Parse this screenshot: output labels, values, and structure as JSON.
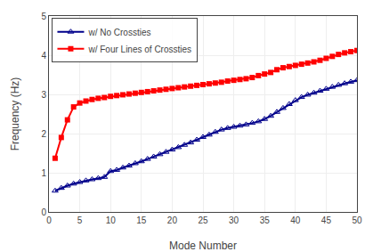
{
  "chart_data": {
    "type": "line",
    "xlabel": "Mode Number",
    "ylabel": "Frequency (Hz)",
    "x": [
      1,
      2,
      3,
      4,
      5,
      6,
      7,
      8,
      9,
      10,
      11,
      12,
      13,
      14,
      15,
      16,
      17,
      18,
      19,
      20,
      21,
      22,
      23,
      24,
      25,
      26,
      27,
      28,
      29,
      30,
      31,
      32,
      33,
      34,
      35,
      36,
      37,
      38,
      39,
      40,
      41,
      42,
      43,
      44,
      45,
      46,
      47,
      48,
      49,
      50
    ],
    "series": [
      {
        "name": "w/ No Crossties",
        "color": "#00008B",
        "marker": "triangle-open",
        "values": [
          0.54,
          0.61,
          0.67,
          0.72,
          0.76,
          0.8,
          0.83,
          0.86,
          0.89,
          1.04,
          1.07,
          1.13,
          1.18,
          1.24,
          1.29,
          1.35,
          1.41,
          1.47,
          1.53,
          1.59,
          1.65,
          1.71,
          1.77,
          1.84,
          1.91,
          1.97,
          2.04,
          2.1,
          2.14,
          2.17,
          2.2,
          2.23,
          2.27,
          2.31,
          2.37,
          2.45,
          2.55,
          2.65,
          2.75,
          2.85,
          2.93,
          2.99,
          3.04,
          3.09,
          3.14,
          3.19,
          3.24,
          3.28,
          3.32,
          3.36
        ]
      },
      {
        "name": "w/ Four Lines of Crossties",
        "color": "#FF0000",
        "marker": "square",
        "values": [
          1.37,
          1.9,
          2.35,
          2.68,
          2.78,
          2.83,
          2.87,
          2.9,
          2.92,
          2.95,
          2.97,
          2.99,
          3.01,
          3.03,
          3.05,
          3.07,
          3.09,
          3.11,
          3.13,
          3.15,
          3.17,
          3.19,
          3.21,
          3.23,
          3.25,
          3.27,
          3.29,
          3.31,
          3.34,
          3.36,
          3.38,
          3.4,
          3.43,
          3.48,
          3.52,
          3.56,
          3.63,
          3.68,
          3.71,
          3.74,
          3.77,
          3.8,
          3.83,
          3.87,
          3.92,
          3.97,
          4.02,
          4.06,
          4.09,
          4.12
        ]
      }
    ],
    "xlim": [
      0,
      50
    ],
    "ylim": [
      0,
      5
    ],
    "xticks": [
      0,
      5,
      10,
      15,
      20,
      25,
      30,
      35,
      40,
      45,
      50
    ],
    "yticks": [
      0,
      1,
      2,
      3,
      4,
      5
    ],
    "grid": true,
    "legend": "upper left"
  }
}
